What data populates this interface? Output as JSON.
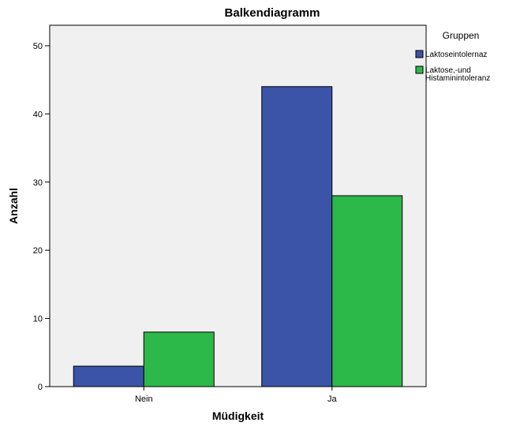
{
  "chart_data": {
    "type": "bar",
    "title": "Balkendiagramm",
    "xlabel": "Müdigkeit",
    "ylabel": "Anzahl",
    "categories": [
      "Nein",
      "Ja"
    ],
    "series": [
      {
        "name": "Laktoseintolernaz",
        "values": [
          3,
          44
        ],
        "color": "#3b54a8"
      },
      {
        "name_lines": [
          "Laktose,-und",
          "Histaminintoleranz"
        ],
        "values": [
          8,
          28
        ],
        "color": "#2db84a"
      }
    ],
    "ylim": [
      0,
      53
    ],
    "yticks": [
      0,
      10,
      20,
      30,
      40,
      50
    ],
    "legend": {
      "title": "Gruppen",
      "position": "right"
    },
    "plot_background": "#f0f0f0",
    "grid": false
  }
}
